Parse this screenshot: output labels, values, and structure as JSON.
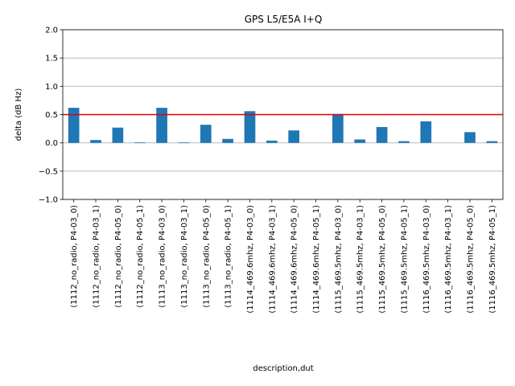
{
  "chart_data": {
    "type": "bar",
    "title": "GPS L5/E5A I+Q",
    "xlabel": "description,dut",
    "ylabel": "delta (dB Hz)",
    "ylim": [
      -1.0,
      2.0
    ],
    "yticks": [
      -1.0,
      -0.5,
      0.0,
      0.5,
      1.0,
      1.5,
      2.0
    ],
    "ytick_labels": [
      "−1.0",
      "−0.5",
      "0.0",
      "0.5",
      "1.0",
      "1.5",
      "2.0"
    ],
    "grid": "y",
    "threshold": 0.5,
    "bar_color": "#1f77b4",
    "threshold_color": "#e00000",
    "grid_color": "#b0b0b0",
    "categories": [
      "(1112_no_radio, P4-03_0)",
      "(1112_no_radio, P4-03_1)",
      "(1112_no_radio, P4-05_0)",
      "(1112_no_radio, P4-05_1)",
      "(1113_no_radio, P4-03_0)",
      "(1113_no_radio, P4-03_1)",
      "(1113_no_radio, P4-05_0)",
      "(1113_no_radio, P4-05_1)",
      "(1114_469.6mhz, P4-03_0)",
      "(1114_469.6mhz, P4-03_1)",
      "(1114_469.6mhz, P4-05_0)",
      "(1114_469.6mhz, P4-05_1)",
      "(1115_469.5mhz, P4-03_0)",
      "(1115_469.5mhz, P4-03_1)",
      "(1115_469.5mhz, P4-05_0)",
      "(1115_469.5mhz, P4-05_1)",
      "(1116_469.5mhz, P4-03_0)",
      "(1116_469.5mhz, P4-03_1)",
      "(1116_469.5mhz, P4-05_0)",
      "(1116_469.5mhz, P4-05_1)"
    ],
    "values": [
      0.62,
      0.05,
      0.27,
      0.01,
      0.62,
      0.01,
      0.32,
      0.07,
      0.56,
      0.04,
      0.22,
      0.0,
      0.51,
      0.06,
      0.28,
      0.03,
      0.38,
      0.0,
      0.19,
      0.03
    ]
  }
}
